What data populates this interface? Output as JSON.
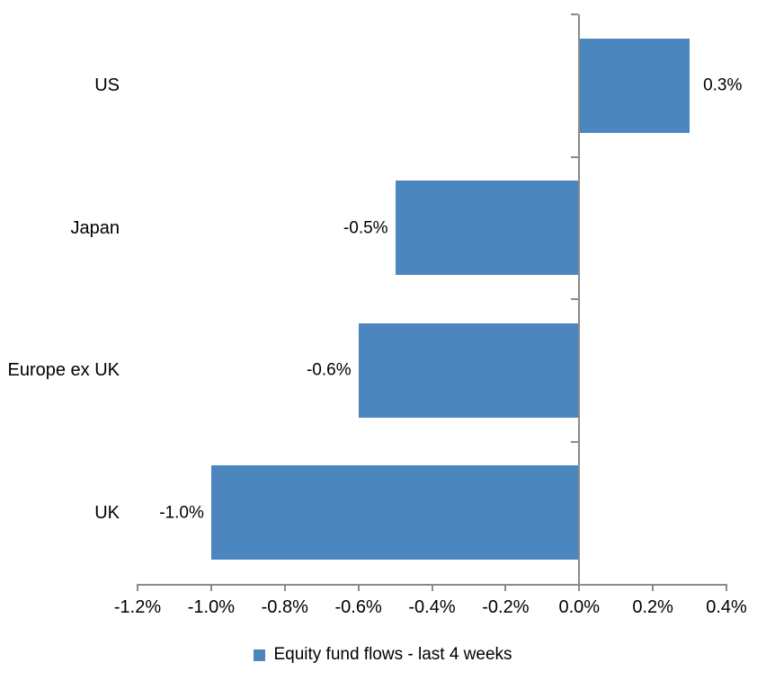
{
  "chart_data": {
    "type": "bar",
    "orientation": "horizontal",
    "title": "",
    "xlabel": "",
    "ylabel": "",
    "categories": [
      "US",
      "Japan",
      "Europe ex UK",
      "UK"
    ],
    "series": [
      {
        "name": "Equity fund flows - last 4 weeks",
        "values": [
          0.3,
          -0.5,
          -0.6,
          -1.0
        ],
        "data_labels": [
          "0.3%",
          "-0.5%",
          "-0.6%",
          "-1.0%"
        ],
        "color": "#4C86BE"
      }
    ],
    "xlim": [
      -1.2,
      0.4
    ],
    "x_ticks": [
      {
        "value": -1.2,
        "label": "-1.2%"
      },
      {
        "value": -1.0,
        "label": "-1.0%"
      },
      {
        "value": -0.8,
        "label": "-0.8%"
      },
      {
        "value": -0.6,
        "label": "-0.6%"
      },
      {
        "value": -0.4,
        "label": "-0.4%"
      },
      {
        "value": -0.2,
        "label": "-0.2%"
      },
      {
        "value": 0.0,
        "label": "0.0%"
      },
      {
        "value": 0.2,
        "label": "0.2%"
      },
      {
        "value": 0.4,
        "label": "0.4%"
      }
    ],
    "grid": false,
    "legend_position": "bottom",
    "colors": {
      "bar": "#4C86BE",
      "axis": "#8A8A8A",
      "text": "#000000",
      "background": "#FFFFFF"
    }
  }
}
